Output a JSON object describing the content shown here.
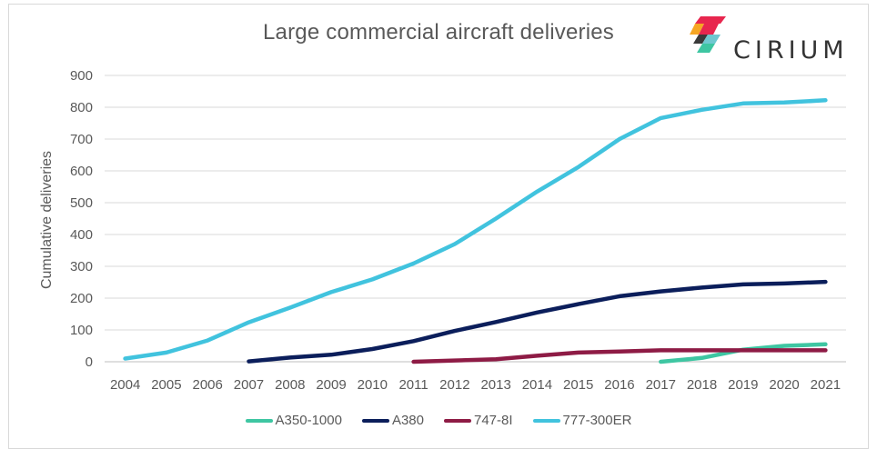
{
  "chart_data": {
    "type": "line",
    "title": "Large commercial aircraft deliveries",
    "ylabel": "Cumulative deliveries",
    "xlabel": "",
    "x": [
      "2004",
      "2005",
      "2006",
      "2007",
      "2008",
      "2009",
      "2010",
      "2011",
      "2012",
      "2013",
      "2014",
      "2015",
      "2016",
      "2017",
      "2018",
      "2019",
      "2020",
      "2021"
    ],
    "ylim": [
      0,
      900
    ],
    "yticks": [
      0,
      100,
      200,
      300,
      400,
      500,
      600,
      700,
      800,
      900
    ],
    "grid": true,
    "legend_position": "bottom",
    "series": [
      {
        "name": "A350-1000",
        "color": "#3EC6A2",
        "values": [
          null,
          null,
          null,
          null,
          null,
          null,
          null,
          null,
          null,
          null,
          null,
          null,
          null,
          0,
          12,
          38,
          50,
          55
        ]
      },
      {
        "name": "A380",
        "color": "#0B1E5B",
        "values": [
          null,
          null,
          null,
          1,
          13,
          22,
          40,
          65,
          97,
          125,
          155,
          181,
          206,
          221,
          233,
          243,
          246,
          251
        ]
      },
      {
        "name": "747-8I",
        "color": "#8E1B45",
        "values": [
          null,
          null,
          null,
          null,
          null,
          null,
          null,
          0,
          4,
          8,
          19,
          29,
          32,
          36,
          36,
          36,
          36,
          36
        ]
      },
      {
        "name": "777-300ER",
        "color": "#41C3DE",
        "values": [
          10,
          29,
          67,
          124,
          170,
          219,
          259,
          309,
          370,
          450,
          535,
          612,
          700,
          766,
          792,
          812,
          815,
          822
        ]
      }
    ]
  },
  "brand": {
    "name": "CIRIUM"
  }
}
